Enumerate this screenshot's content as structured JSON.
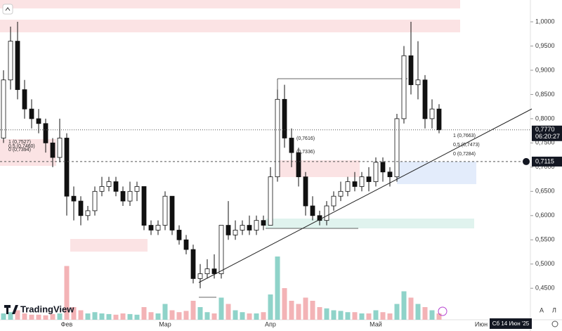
{
  "chart_data": {
    "type": "candlestick",
    "categories": [
      null,
      null,
      null,
      null,
      null,
      null,
      null,
      null,
      null,
      "Фев",
      null,
      null,
      null,
      null,
      null,
      null,
      null,
      null,
      null,
      null,
      null,
      null,
      null,
      "Мар",
      null,
      null,
      null,
      null,
      null,
      null,
      null,
      null,
      null,
      null,
      null,
      null,
      null,
      null,
      "Апр",
      null,
      null,
      null,
      null,
      null,
      null,
      null,
      null,
      null,
      null,
      null,
      null,
      null,
      null,
      "Май",
      null,
      null,
      null,
      null,
      null,
      null,
      null,
      null,
      null,
      null,
      null,
      null,
      null,
      null,
      "Июн"
    ],
    "open": [
      0.76,
      0.88,
      0.96,
      0.86,
      0.82,
      0.8,
      0.79,
      0.75,
      0.72,
      0.76,
      0.64,
      0.63,
      0.6,
      0.61,
      0.65,
      0.66,
      0.67,
      0.65,
      0.63,
      0.65,
      0.66,
      0.58,
      0.57,
      0.58,
      0.64,
      0.57,
      0.55,
      0.53,
      0.47,
      0.48,
      0.49,
      0.48,
      0.58,
      0.56,
      0.57,
      0.58,
      0.57,
      0.59,
      0.58,
      0.68,
      0.84,
      0.76,
      0.73,
      0.68,
      0.62,
      0.6,
      0.59,
      0.62,
      0.64,
      0.65,
      0.67,
      0.66,
      0.68,
      0.67,
      0.71,
      0.69,
      0.68,
      0.8,
      0.93,
      0.87,
      0.88,
      0.8,
      0.82,
      null,
      null,
      null,
      null,
      null,
      null
    ],
    "high": [
      0.9,
      0.99,
      1.0,
      0.88,
      0.84,
      0.82,
      0.8,
      0.76,
      0.8,
      0.77,
      0.66,
      0.64,
      0.62,
      0.66,
      0.68,
      0.68,
      0.68,
      0.66,
      0.67,
      0.67,
      0.66,
      0.59,
      0.59,
      0.65,
      0.64,
      0.58,
      0.56,
      0.54,
      0.5,
      0.51,
      0.52,
      0.58,
      0.63,
      0.59,
      0.59,
      0.6,
      0.6,
      0.6,
      0.7,
      0.86,
      0.87,
      0.78,
      0.74,
      0.69,
      0.64,
      0.61,
      0.63,
      0.65,
      0.67,
      0.68,
      0.69,
      0.69,
      0.7,
      0.72,
      0.72,
      0.7,
      0.81,
      0.95,
      1.0,
      0.96,
      0.89,
      0.84,
      0.83,
      null,
      null,
      null,
      null,
      null,
      null
    ],
    "low": [
      0.75,
      0.86,
      0.84,
      0.8,
      0.78,
      0.77,
      0.73,
      0.7,
      0.71,
      0.6,
      0.59,
      0.58,
      0.59,
      0.6,
      0.64,
      0.65,
      0.64,
      0.62,
      0.62,
      0.63,
      0.57,
      0.56,
      0.56,
      0.57,
      0.56,
      0.54,
      0.52,
      0.46,
      0.45,
      0.47,
      0.47,
      0.47,
      0.55,
      0.55,
      0.56,
      0.56,
      0.56,
      0.57,
      0.58,
      0.67,
      0.74,
      0.7,
      0.66,
      0.6,
      0.59,
      0.58,
      0.58,
      0.61,
      0.63,
      0.64,
      0.65,
      0.65,
      0.65,
      0.66,
      0.67,
      0.66,
      0.67,
      0.79,
      0.85,
      0.84,
      0.78,
      0.78,
      0.77,
      null,
      null,
      null,
      null,
      null,
      null
    ],
    "close": [
      0.88,
      0.96,
      0.86,
      0.82,
      0.8,
      0.79,
      0.75,
      0.72,
      0.76,
      0.64,
      0.63,
      0.6,
      0.61,
      0.65,
      0.66,
      0.67,
      0.65,
      0.63,
      0.65,
      0.66,
      0.58,
      0.57,
      0.58,
      0.64,
      0.57,
      0.55,
      0.53,
      0.47,
      0.48,
      0.49,
      0.48,
      0.58,
      0.56,
      0.57,
      0.58,
      0.57,
      0.59,
      0.58,
      0.68,
      0.84,
      0.76,
      0.73,
      0.68,
      0.62,
      0.6,
      0.59,
      0.62,
      0.64,
      0.65,
      0.67,
      0.66,
      0.68,
      0.67,
      0.71,
      0.69,
      0.68,
      0.8,
      0.93,
      0.87,
      0.88,
      0.8,
      0.82,
      0.777,
      null,
      null,
      null,
      null,
      null,
      null
    ],
    "volume": [
      10,
      12,
      15,
      10,
      8,
      8,
      7,
      9,
      10,
      85,
      20,
      15,
      10,
      12,
      10,
      9,
      8,
      10,
      9,
      8,
      20,
      12,
      10,
      25,
      15,
      12,
      14,
      30,
      20,
      12,
      10,
      35,
      25,
      15,
      12,
      10,
      10,
      12,
      40,
      100,
      50,
      30,
      25,
      35,
      30,
      20,
      18,
      15,
      14,
      12,
      12,
      10,
      10,
      15,
      12,
      10,
      25,
      45,
      35,
      25,
      20,
      15,
      10,
      null,
      null,
      null,
      null,
      null,
      null
    ],
    "up_color": "#ffffff",
    "down_color": "#111111",
    "volume_up_color": "#8fd3c9",
    "volume_down_color": "#f3b3b6",
    "ylim": [
      0.385,
      1.045
    ],
    "yticks": [
      {
        "value": 1.0,
        "label": "1,0000"
      },
      {
        "value": 0.95,
        "label": "0,9500"
      },
      {
        "value": 0.9,
        "label": "0,9000"
      },
      {
        "value": 0.85,
        "label": "0,8500"
      },
      {
        "value": 0.8,
        "label": "0,8000"
      },
      {
        "value": 0.75,
        "label": "0,7500"
      },
      {
        "value": 0.7,
        "label": "0,7000"
      },
      {
        "value": 0.65,
        "label": "0,6500"
      },
      {
        "value": 0.6,
        "label": "0,6000"
      },
      {
        "value": 0.55,
        "label": "0,5500"
      },
      {
        "value": 0.5,
        "label": "0,5000"
      },
      {
        "value": 0.45,
        "label": "0,4500"
      }
    ],
    "last_price": {
      "value": 0.777,
      "label": "0,7770"
    },
    "countdown": "06:20:27",
    "crosshair_price": {
      "value": 0.7115,
      "label": "0,7115"
    },
    "crosshair_date": "Сб 14 Июн '25",
    "annotations": [
      "1 (0,7663)",
      "0,5 (0,7473)",
      "0 (0,7284)",
      "(0,7616)",
      "(0,7336)",
      "1 (0,7527)",
      "0,5 (0,7460)",
      "0 (0,7394)"
    ],
    "brand": "TradingView",
    "scale_buttons": [
      "A",
      "Л"
    ]
  }
}
